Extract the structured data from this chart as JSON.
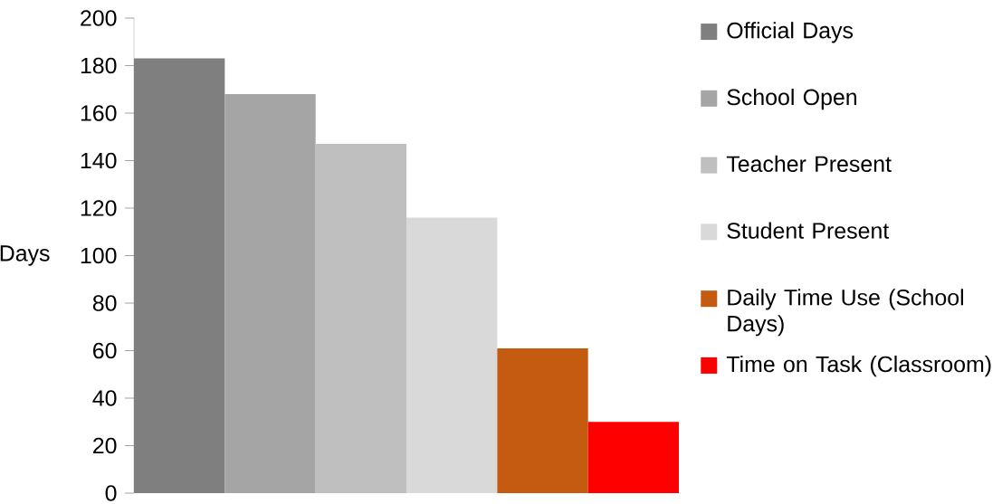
{
  "chart_data": {
    "type": "bar",
    "ylabel": "Days",
    "categories": [
      null
    ],
    "series": [
      {
        "name": "Official Days",
        "color": "#7f7f7f",
        "values": [
          183
        ]
      },
      {
        "name": "School Open",
        "color": "#a5a5a5",
        "values": [
          168
        ]
      },
      {
        "name": "Teacher Present",
        "color": "#bfbfbf",
        "values": [
          147
        ]
      },
      {
        "name": "Student Present",
        "color": "#d9d9d9",
        "values": [
          116
        ]
      },
      {
        "name": "Daily Time Use (School Days)",
        "color": "#c55a11",
        "values": [
          61
        ]
      },
      {
        "name": "Time on Task (Classroom)",
        "color": "#ff0000",
        "values": [
          30
        ]
      }
    ],
    "ylim": [
      0,
      200
    ],
    "yticks": [
      0,
      20,
      40,
      60,
      80,
      100,
      120,
      140,
      160,
      180,
      200
    ],
    "legend": "right"
  }
}
